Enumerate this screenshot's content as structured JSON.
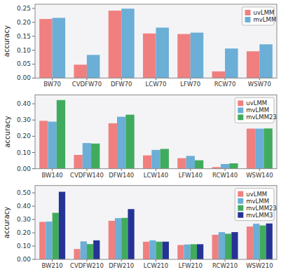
{
  "chart_data": [
    {
      "type": "bar",
      "y_label": "accuracy",
      "categories": [
        "BW70",
        "CVDFW70",
        "DFW70",
        "LCW70",
        "LFW70",
        "RCW70",
        "WSW70"
      ],
      "series": [
        {
          "name": "uvLMM",
          "color": "#F08080",
          "values": [
            0.212,
            0.048,
            0.242,
            0.16,
            0.158,
            0.024,
            0.096
          ]
        },
        {
          "name": "mvLMM",
          "color": "#6BAED6",
          "values": [
            0.216,
            0.083,
            0.249,
            0.181,
            0.163,
            0.106,
            0.121
          ]
        }
      ],
      "ylim": [
        0,
        0.265
      ],
      "yticks": [
        {
          "value": 0,
          "label": "0.00"
        },
        0.05,
        {
          "value": 0.1,
          "label": "0.10"
        },
        0.15,
        {
          "value": 0.2,
          "label": "0.20"
        },
        0.25
      ],
      "grid": false,
      "legend": "upper right"
    },
    {
      "type": "bar",
      "y_label": "accuracy",
      "categories": [
        "BW140",
        "CVDFW140",
        "DFW140",
        "LCW140",
        "LFW140",
        "RCW140",
        "WSW140"
      ],
      "series": [
        {
          "name": "uvLMM",
          "color": "#F08080",
          "values": [
            0.295,
            0.085,
            0.28,
            0.082,
            0.065,
            0.01,
            0.247
          ]
        },
        {
          "name": "mvLMM",
          "color": "#6BAED6",
          "values": [
            0.29,
            0.158,
            0.32,
            0.116,
            0.079,
            0.029,
            0.247
          ]
        },
        {
          "name": "mvLMM23",
          "color": "#41AB5D",
          "values": [
            0.423,
            0.155,
            0.333,
            0.122,
            0.052,
            0.033,
            0.248
          ]
        }
      ],
      "ylim": [
        0,
        0.455
      ],
      "yticks": [
        {
          "value": 0,
          "label": "0.00"
        },
        {
          "value": 0.1,
          "label": "0.10"
        },
        {
          "value": 0.2,
          "label": "0.20"
        },
        {
          "value": 0.3,
          "label": "0.30"
        },
        {
          "value": 0.4,
          "label": "0.40"
        }
      ],
      "grid": false,
      "legend": "upper right"
    },
    {
      "type": "bar",
      "y_label": "accuracy",
      "categories": [
        "BW210",
        "CVDFW210",
        "DFW210",
        "LCW210",
        "LFW210",
        "RCW210",
        "WSW210"
      ],
      "series": [
        {
          "name": "uvLMM",
          "color": "#F08080",
          "values": [
            0.282,
            0.078,
            0.29,
            0.133,
            0.108,
            0.185,
            0.247
          ]
        },
        {
          "name": "mvLMM",
          "color": "#6BAED6",
          "values": [
            0.284,
            0.135,
            0.31,
            0.143,
            0.112,
            0.205,
            0.268
          ]
        },
        {
          "name": "mvLMM23",
          "color": "#41AB5D",
          "values": [
            0.35,
            0.115,
            0.312,
            0.133,
            0.114,
            0.193,
            0.255
          ]
        },
        {
          "name": "mvLMM3",
          "color": "#253494",
          "values": [
            0.508,
            0.143,
            0.378,
            0.133,
            0.114,
            0.205,
            0.27
          ]
        }
      ],
      "ylim": [
        0,
        0.555
      ],
      "yticks": [
        {
          "value": 0,
          "label": "0.00"
        },
        {
          "value": 0.1,
          "label": "0.10"
        },
        {
          "value": 0.2,
          "label": "0.20"
        },
        {
          "value": 0.3,
          "label": "0.30"
        },
        {
          "value": 0.4,
          "label": "0.40"
        },
        {
          "value": 0.5,
          "label": "0.50"
        }
      ],
      "grid": false,
      "legend": "upper right"
    }
  ]
}
